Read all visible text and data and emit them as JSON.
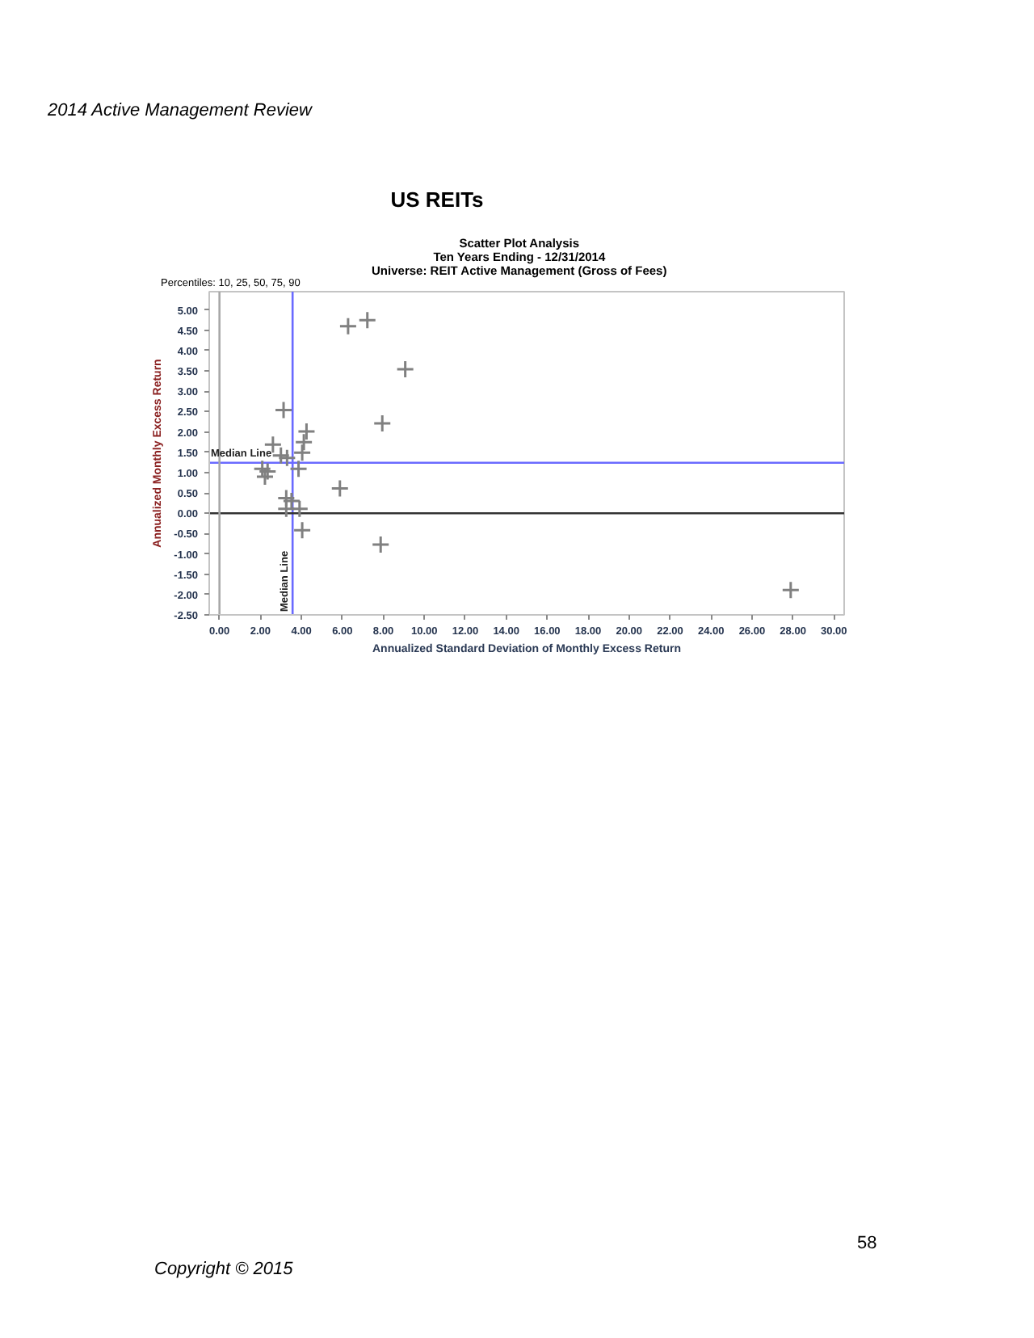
{
  "chart_data": {
    "type": "scatter",
    "title": "Scatter Plot Analysis",
    "subtitle": "Ten Years Ending - 12/31/2014\nUniverse: REIT Active Management (Gross of Fees)",
    "xlabel": "Annualized Standard Deviation of Monthly Excess Return",
    "ylabel": "Annualized Monthly Excess Return",
    "annotations": [
      "2014 Active Management Review",
      "US REITs",
      "Percentiles: 10, 25, 50, 75, 90",
      "58",
      "Copyright © 2015"
    ],
    "x": [
      6.28,
      7.22,
      9.07,
      3.13,
      7.95,
      4.25,
      2.61,
      4.12,
      4.04,
      3.0,
      3.3,
      3.86,
      2.09,
      2.22,
      2.35,
      3.26,
      3.52,
      3.26,
      3.91,
      5.88,
      4.04,
      7.87,
      27.89
    ],
    "values": [
      4.6,
      4.75,
      3.54,
      2.54,
      2.21,
      2.01,
      1.69,
      1.75,
      1.49,
      1.42,
      1.36,
      1.09,
      1.09,
      0.9,
      1.03,
      0.37,
      0.3,
      0.11,
      0.11,
      0.61,
      -0.42,
      -0.77,
      -1.89
    ],
    "color": "#808080",
    "marker": "cross",
    "grid": false,
    "xlim": [
      -0.5,
      30.5
    ],
    "ylim": [
      -2.5,
      5.45
    ],
    "xticks": [
      {
        "value": 0,
        "label": "0.00"
      },
      {
        "value": 2,
        "label": "2.00"
      },
      {
        "value": 4,
        "label": "4.00"
      },
      {
        "value": 6,
        "label": "6.00"
      },
      {
        "value": 8,
        "label": "8.00"
      },
      {
        "value": 10,
        "label": "10.00"
      },
      {
        "value": 12,
        "label": "12.00"
      },
      {
        "value": 14,
        "label": "14.00"
      },
      {
        "value": 16,
        "label": "16.00"
      },
      {
        "value": 18,
        "label": "18.00"
      },
      {
        "value": 20,
        "label": "20.00"
      },
      {
        "value": 22,
        "label": "22.00"
      },
      {
        "value": 24,
        "label": "24.00"
      },
      {
        "value": 26,
        "label": "26.00"
      },
      {
        "value": 28,
        "label": "28.00"
      },
      {
        "value": 30,
        "label": "30.00"
      }
    ],
    "yticks": [
      {
        "value": -2.5,
        "label": "-2.50"
      },
      {
        "value": -2,
        "label": "-2.00"
      },
      {
        "value": -1.5,
        "label": "-1.50"
      },
      {
        "value": -1,
        "label": "-1.00"
      },
      {
        "value": -0.5,
        "label": "-0.50"
      },
      {
        "value": 0,
        "label": "0.00"
      },
      {
        "value": 0.5,
        "label": "0.50"
      },
      {
        "value": 1,
        "label": "1.00"
      },
      {
        "value": 1.5,
        "label": "1.50"
      },
      {
        "value": 2,
        "label": "2.00"
      },
      {
        "value": 2.5,
        "label": "2.50"
      },
      {
        "value": 3,
        "label": "3.00"
      },
      {
        "value": 3.5,
        "label": "3.50"
      },
      {
        "value": 4,
        "label": "4.00"
      },
      {
        "value": 4.5,
        "label": "4.50"
      },
      {
        "value": 5,
        "label": "5.00"
      }
    ],
    "ref_lines": [
      {
        "axis": "y",
        "value": 1.24,
        "label": "Median Line",
        "color": "#6a6aff"
      },
      {
        "axis": "x",
        "value": 3.57,
        "label": "Median Line",
        "color": "#6a6aff"
      },
      {
        "axis": "y",
        "value": 0,
        "color": "#333333"
      },
      {
        "axis": "x",
        "value": 0,
        "color": "#a8a8a8"
      }
    ]
  }
}
